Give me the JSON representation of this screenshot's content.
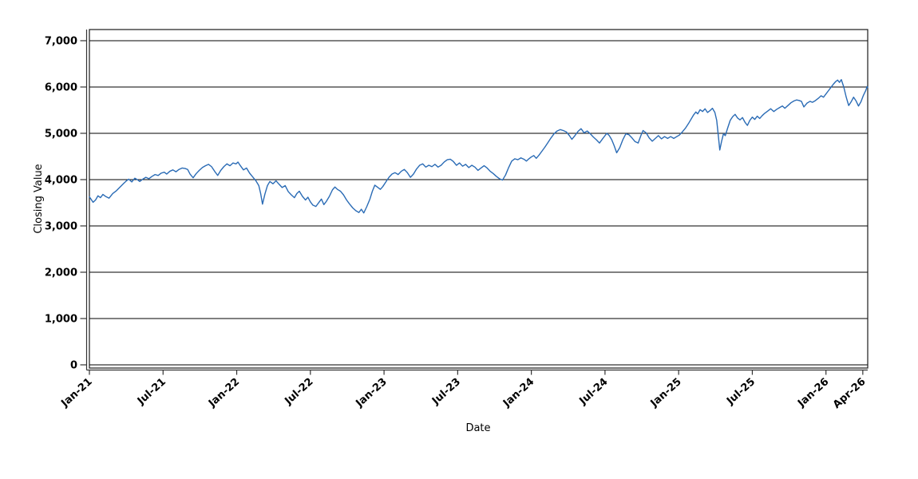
{
  "chart_data": {
    "type": "line",
    "title": "",
    "xlabel": "Date",
    "ylabel": "Closing Value",
    "legend": "none",
    "grid": "horizontal-only",
    "frame": true,
    "line_color": "#2a6bb5",
    "grid_color": "#000000",
    "frame_color": "#1a1a1a",
    "axis_color": "#333333",
    "x_tick_labels": [
      "Jan-21",
      "Jul-21",
      "Jan-22",
      "Jul-22",
      "Jan-23",
      "Jul-23",
      "Jan-24",
      "Jul-24",
      "Jan-25",
      "Jul-25",
      "Jan-26",
      "Apr-26"
    ],
    "x_tick_months": [
      0,
      6,
      12,
      18,
      24,
      30,
      36,
      42,
      48,
      54,
      60,
      63
    ],
    "x_tick_rotation_deg": -42,
    "y_ticks": [
      0,
      1000,
      2000,
      3000,
      4000,
      5000,
      6000,
      7000
    ],
    "y_tick_labels": [
      "0",
      "1,000",
      "2,000",
      "3,000",
      "4,000",
      "5,000",
      "6,000",
      "7,000"
    ],
    "xlim_months": [
      0,
      63.4
    ],
    "ylim": [
      -69,
      7241
    ],
    "series": [
      {
        "name": "Closing Value",
        "points": [
          [
            0.0,
            3630
          ],
          [
            0.15,
            3570
          ],
          [
            0.3,
            3510
          ],
          [
            0.5,
            3560
          ],
          [
            0.7,
            3650
          ],
          [
            0.9,
            3610
          ],
          [
            1.1,
            3680
          ],
          [
            1.3,
            3640
          ],
          [
            1.6,
            3600
          ],
          [
            1.9,
            3700
          ],
          [
            2.2,
            3760
          ],
          [
            2.5,
            3840
          ],
          [
            2.8,
            3920
          ],
          [
            3.0,
            3970
          ],
          [
            3.2,
            4010
          ],
          [
            3.45,
            3950
          ],
          [
            3.7,
            4030
          ],
          [
            3.9,
            4000
          ],
          [
            4.1,
            3960
          ],
          [
            4.35,
            4010
          ],
          [
            4.6,
            4050
          ],
          [
            4.85,
            4020
          ],
          [
            5.1,
            4070
          ],
          [
            5.35,
            4110
          ],
          [
            5.6,
            4090
          ],
          [
            5.85,
            4140
          ],
          [
            6.1,
            4160
          ],
          [
            6.3,
            4120
          ],
          [
            6.55,
            4180
          ],
          [
            6.8,
            4210
          ],
          [
            7.05,
            4170
          ],
          [
            7.3,
            4220
          ],
          [
            7.55,
            4250
          ],
          [
            7.8,
            4240
          ],
          [
            8.0,
            4220
          ],
          [
            8.2,
            4120
          ],
          [
            8.45,
            4040
          ],
          [
            8.7,
            4130
          ],
          [
            8.95,
            4200
          ],
          [
            9.2,
            4260
          ],
          [
            9.45,
            4300
          ],
          [
            9.7,
            4330
          ],
          [
            9.95,
            4280
          ],
          [
            10.2,
            4180
          ],
          [
            10.45,
            4090
          ],
          [
            10.7,
            4200
          ],
          [
            10.95,
            4280
          ],
          [
            11.2,
            4340
          ],
          [
            11.45,
            4300
          ],
          [
            11.7,
            4360
          ],
          [
            11.95,
            4340
          ],
          [
            12.1,
            4380
          ],
          [
            12.3,
            4300
          ],
          [
            12.55,
            4210
          ],
          [
            12.8,
            4250
          ],
          [
            13.05,
            4140
          ],
          [
            13.3,
            4060
          ],
          [
            13.55,
            3980
          ],
          [
            13.8,
            3870
          ],
          [
            13.95,
            3700
          ],
          [
            14.1,
            3470
          ],
          [
            14.3,
            3690
          ],
          [
            14.5,
            3870
          ],
          [
            14.7,
            3960
          ],
          [
            14.95,
            3910
          ],
          [
            15.2,
            3975
          ],
          [
            15.45,
            3900
          ],
          [
            15.7,
            3830
          ],
          [
            15.95,
            3870
          ],
          [
            16.2,
            3740
          ],
          [
            16.45,
            3670
          ],
          [
            16.7,
            3610
          ],
          [
            16.9,
            3700
          ],
          [
            17.1,
            3750
          ],
          [
            17.35,
            3640
          ],
          [
            17.6,
            3560
          ],
          [
            17.8,
            3620
          ],
          [
            18.0,
            3520
          ],
          [
            18.2,
            3450
          ],
          [
            18.45,
            3420
          ],
          [
            18.7,
            3510
          ],
          [
            18.9,
            3580
          ],
          [
            19.1,
            3460
          ],
          [
            19.3,
            3530
          ],
          [
            19.55,
            3640
          ],
          [
            19.8,
            3780
          ],
          [
            20.0,
            3840
          ],
          [
            20.2,
            3790
          ],
          [
            20.45,
            3750
          ],
          [
            20.7,
            3670
          ],
          [
            20.95,
            3560
          ],
          [
            21.2,
            3470
          ],
          [
            21.45,
            3390
          ],
          [
            21.7,
            3330
          ],
          [
            21.95,
            3290
          ],
          [
            22.15,
            3360
          ],
          [
            22.35,
            3280
          ],
          [
            22.6,
            3420
          ],
          [
            22.85,
            3580
          ],
          [
            23.05,
            3750
          ],
          [
            23.25,
            3880
          ],
          [
            23.5,
            3830
          ],
          [
            23.7,
            3790
          ],
          [
            23.9,
            3850
          ],
          [
            24.15,
            3950
          ],
          [
            24.4,
            4050
          ],
          [
            24.65,
            4120
          ],
          [
            24.9,
            4150
          ],
          [
            25.15,
            4110
          ],
          [
            25.4,
            4180
          ],
          [
            25.65,
            4220
          ],
          [
            25.9,
            4150
          ],
          [
            26.15,
            4050
          ],
          [
            26.4,
            4120
          ],
          [
            26.65,
            4230
          ],
          [
            26.9,
            4310
          ],
          [
            27.15,
            4340
          ],
          [
            27.4,
            4270
          ],
          [
            27.65,
            4310
          ],
          [
            27.9,
            4280
          ],
          [
            28.15,
            4330
          ],
          [
            28.4,
            4270
          ],
          [
            28.65,
            4310
          ],
          [
            28.9,
            4380
          ],
          [
            29.15,
            4430
          ],
          [
            29.4,
            4440
          ],
          [
            29.65,
            4390
          ],
          [
            29.9,
            4310
          ],
          [
            30.15,
            4360
          ],
          [
            30.4,
            4290
          ],
          [
            30.65,
            4330
          ],
          [
            30.9,
            4260
          ],
          [
            31.15,
            4310
          ],
          [
            31.4,
            4270
          ],
          [
            31.65,
            4200
          ],
          [
            31.9,
            4250
          ],
          [
            32.15,
            4300
          ],
          [
            32.4,
            4250
          ],
          [
            32.65,
            4180
          ],
          [
            32.9,
            4130
          ],
          [
            33.15,
            4070
          ],
          [
            33.4,
            4020
          ],
          [
            33.65,
            3990
          ],
          [
            33.9,
            4100
          ],
          [
            34.15,
            4260
          ],
          [
            34.4,
            4400
          ],
          [
            34.65,
            4450
          ],
          [
            34.9,
            4430
          ],
          [
            35.15,
            4470
          ],
          [
            35.4,
            4440
          ],
          [
            35.6,
            4400
          ],
          [
            35.8,
            4450
          ],
          [
            36.0,
            4490
          ],
          [
            36.2,
            4520
          ],
          [
            36.4,
            4460
          ],
          [
            36.6,
            4520
          ],
          [
            36.85,
            4610
          ],
          [
            37.1,
            4700
          ],
          [
            37.35,
            4800
          ],
          [
            37.6,
            4900
          ],
          [
            37.85,
            4990
          ],
          [
            38.1,
            5050
          ],
          [
            38.35,
            5080
          ],
          [
            38.6,
            5060
          ],
          [
            38.85,
            5030
          ],
          [
            39.1,
            4950
          ],
          [
            39.3,
            4870
          ],
          [
            39.55,
            4950
          ],
          [
            39.8,
            5040
          ],
          [
            40.05,
            5100
          ],
          [
            40.3,
            5010
          ],
          [
            40.55,
            5050
          ],
          [
            40.8,
            4990
          ],
          [
            41.05,
            4920
          ],
          [
            41.3,
            4860
          ],
          [
            41.55,
            4790
          ],
          [
            41.8,
            4880
          ],
          [
            42.0,
            4950
          ],
          [
            42.15,
            5000
          ],
          [
            42.35,
            4950
          ],
          [
            42.55,
            4860
          ],
          [
            42.75,
            4730
          ],
          [
            42.95,
            4580
          ],
          [
            43.2,
            4690
          ],
          [
            43.45,
            4860
          ],
          [
            43.7,
            4990
          ],
          [
            43.95,
            4970
          ],
          [
            44.2,
            4900
          ],
          [
            44.45,
            4820
          ],
          [
            44.7,
            4790
          ],
          [
            44.95,
            4970
          ],
          [
            45.1,
            5060
          ],
          [
            45.35,
            5010
          ],
          [
            45.6,
            4900
          ],
          [
            45.85,
            4830
          ],
          [
            46.1,
            4890
          ],
          [
            46.35,
            4950
          ],
          [
            46.6,
            4880
          ],
          [
            46.85,
            4930
          ],
          [
            47.1,
            4890
          ],
          [
            47.35,
            4930
          ],
          [
            47.6,
            4890
          ],
          [
            47.85,
            4930
          ],
          [
            48.05,
            4960
          ],
          [
            48.3,
            5030
          ],
          [
            48.55,
            5110
          ],
          [
            48.8,
            5210
          ],
          [
            49.0,
            5300
          ],
          [
            49.2,
            5390
          ],
          [
            49.4,
            5460
          ],
          [
            49.55,
            5420
          ],
          [
            49.75,
            5510
          ],
          [
            49.95,
            5470
          ],
          [
            50.15,
            5530
          ],
          [
            50.35,
            5450
          ],
          [
            50.55,
            5490
          ],
          [
            50.75,
            5540
          ],
          [
            50.95,
            5450
          ],
          [
            51.1,
            5280
          ],
          [
            51.25,
            4900
          ],
          [
            51.35,
            4640
          ],
          [
            51.5,
            4830
          ],
          [
            51.65,
            4990
          ],
          [
            51.8,
            4950
          ],
          [
            52.0,
            5120
          ],
          [
            52.2,
            5280
          ],
          [
            52.4,
            5360
          ],
          [
            52.6,
            5410
          ],
          [
            52.8,
            5330
          ],
          [
            53.0,
            5290
          ],
          [
            53.2,
            5340
          ],
          [
            53.4,
            5240
          ],
          [
            53.6,
            5170
          ],
          [
            53.8,
            5280
          ],
          [
            54.0,
            5350
          ],
          [
            54.2,
            5300
          ],
          [
            54.4,
            5370
          ],
          [
            54.6,
            5320
          ],
          [
            54.8,
            5380
          ],
          [
            55.0,
            5430
          ],
          [
            55.25,
            5480
          ],
          [
            55.5,
            5530
          ],
          [
            55.75,
            5470
          ],
          [
            56.0,
            5520
          ],
          [
            56.25,
            5560
          ],
          [
            56.45,
            5590
          ],
          [
            56.65,
            5540
          ],
          [
            56.9,
            5600
          ],
          [
            57.15,
            5660
          ],
          [
            57.4,
            5700
          ],
          [
            57.6,
            5720
          ],
          [
            57.8,
            5710
          ],
          [
            58.0,
            5690
          ],
          [
            58.2,
            5570
          ],
          [
            58.45,
            5650
          ],
          [
            58.7,
            5690
          ],
          [
            58.9,
            5670
          ],
          [
            59.1,
            5700
          ],
          [
            59.35,
            5750
          ],
          [
            59.6,
            5810
          ],
          [
            59.8,
            5780
          ],
          [
            60.0,
            5850
          ],
          [
            60.2,
            5920
          ],
          [
            60.4,
            5990
          ],
          [
            60.6,
            6060
          ],
          [
            60.8,
            6120
          ],
          [
            60.95,
            6150
          ],
          [
            61.1,
            6100
          ],
          [
            61.25,
            6160
          ],
          [
            61.45,
            6000
          ],
          [
            61.65,
            5780
          ],
          [
            61.85,
            5600
          ],
          [
            62.05,
            5680
          ],
          [
            62.25,
            5780
          ],
          [
            62.45,
            5700
          ],
          [
            62.65,
            5590
          ],
          [
            62.85,
            5680
          ],
          [
            63.05,
            5820
          ],
          [
            63.25,
            5930
          ],
          [
            63.35,
            6010
          ],
          [
            63.4,
            5990
          ]
        ]
      }
    ]
  }
}
